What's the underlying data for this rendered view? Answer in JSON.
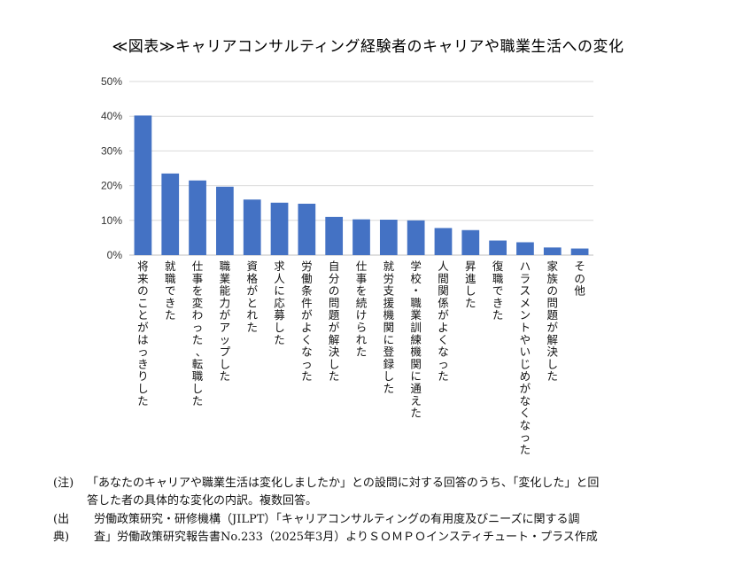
{
  "title": "≪図表≫キャリアコンサルティング経験者のキャリアや職業生活への変化",
  "chart_data": {
    "type": "bar",
    "ylim": [
      0,
      50
    ],
    "ytick_step": 10,
    "ytick_labels": [
      "0%",
      "10%",
      "20%",
      "30%",
      "40%",
      "50%"
    ],
    "grid": true,
    "bar_color": "#4472C4",
    "categories": [
      "将来のことがはっきりした",
      "就職できた",
      "仕事を変わった、転職した",
      "職業能力がアップした",
      "資格がとれた",
      "求人に応募した",
      "労働条件がよくなった",
      "自分の問題が解決した",
      "仕事を続けられた",
      "就労支援機関に登録した",
      "学校・職業訓練機関に通えた",
      "人間関係がよくなった",
      "昇進した",
      "復職できた",
      "ハラスメントやいじめがなくなった",
      "家族の問題が解決した",
      "その他"
    ],
    "values": [
      40.2,
      23.5,
      21.5,
      19.7,
      16.0,
      15.1,
      14.8,
      11.0,
      10.3,
      10.2,
      10.0,
      7.8,
      7.2,
      4.2,
      3.7,
      2.2,
      1.9
    ]
  },
  "notes": {
    "note_label": "(注)",
    "note_line1": "「あなたのキャリアや職業生活は変化しましたか」との設問に対する回答のうち、「変化した」と回",
    "note_line2": "答した者の具体的な変化の内訳。複数回答。",
    "source_label": "(出典)",
    "source_line1": "労働政策研究・研修機構（JILPT）「キャリアコンサルティングの有用度及びニーズに関する調",
    "source_line2": "査」労働政策研究報告書No.233（2025年3月）よりＳＯＭＰＯインスティチュート・プラス作成"
  }
}
